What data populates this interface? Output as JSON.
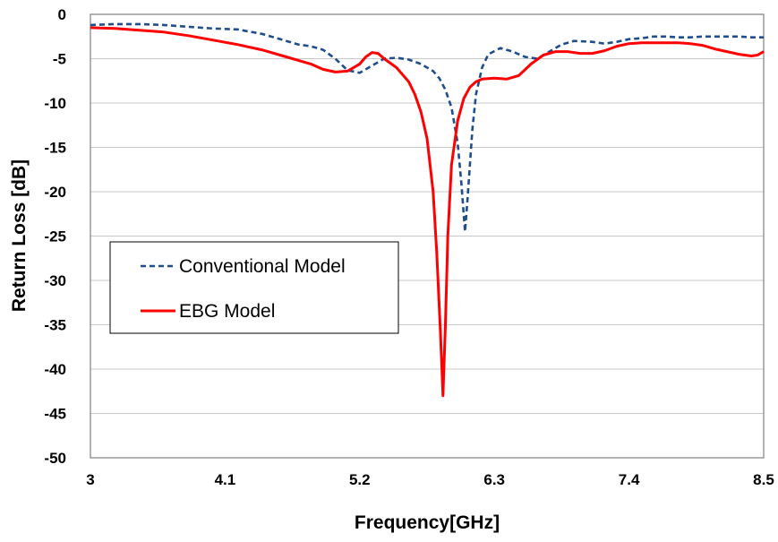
{
  "chart_data": {
    "type": "line",
    "title": "",
    "xlabel": "Frequency[GHz]",
    "ylabel": "Return Loss [dB]",
    "xlim": [
      3,
      8.5
    ],
    "ylim": [
      -50,
      0
    ],
    "x_ticks": [
      "3",
      "4.1",
      "5.2",
      "6.3",
      "7.4",
      "8.5"
    ],
    "y_ticks": [
      "0",
      "-5",
      "-10",
      "-15",
      "-20",
      "-25",
      "-30",
      "-35",
      "-40",
      "-45",
      "-50"
    ],
    "grid": "horizontal",
    "legend_position": "lower-left inside plot",
    "series": [
      {
        "name": "Conventional Model",
        "color": "#1f4e8c",
        "style": "dashed",
        "points": [
          [
            3.0,
            -1.2
          ],
          [
            3.2,
            -1.1
          ],
          [
            3.4,
            -1.1
          ],
          [
            3.6,
            -1.2
          ],
          [
            3.8,
            -1.4
          ],
          [
            4.0,
            -1.6
          ],
          [
            4.2,
            -1.7
          ],
          [
            4.4,
            -2.2
          ],
          [
            4.6,
            -3.0
          ],
          [
            4.7,
            -3.4
          ],
          [
            4.8,
            -3.6
          ],
          [
            4.9,
            -4.0
          ],
          [
            5.0,
            -5.0
          ],
          [
            5.1,
            -6.3
          ],
          [
            5.2,
            -6.6
          ],
          [
            5.3,
            -5.8
          ],
          [
            5.4,
            -5.0
          ],
          [
            5.5,
            -4.9
          ],
          [
            5.6,
            -5.1
          ],
          [
            5.7,
            -5.6
          ],
          [
            5.8,
            -6.4
          ],
          [
            5.85,
            -7.2
          ],
          [
            5.9,
            -8.5
          ],
          [
            5.95,
            -10.5
          ],
          [
            6.0,
            -14.5
          ],
          [
            6.03,
            -19.0
          ],
          [
            6.06,
            -24.5
          ],
          [
            6.08,
            -21.0
          ],
          [
            6.12,
            -13.0
          ],
          [
            6.15,
            -9.0
          ],
          [
            6.2,
            -6.0
          ],
          [
            6.25,
            -4.5
          ],
          [
            6.35,
            -3.8
          ],
          [
            6.45,
            -4.2
          ],
          [
            6.55,
            -4.8
          ],
          [
            6.65,
            -5.0
          ],
          [
            6.75,
            -4.2
          ],
          [
            6.85,
            -3.4
          ],
          [
            6.95,
            -3.0
          ],
          [
            7.1,
            -3.1
          ],
          [
            7.2,
            -3.3
          ],
          [
            7.3,
            -3.1
          ],
          [
            7.4,
            -2.8
          ],
          [
            7.5,
            -2.7
          ],
          [
            7.6,
            -2.5
          ],
          [
            7.7,
            -2.5
          ],
          [
            7.8,
            -2.6
          ],
          [
            7.9,
            -2.6
          ],
          [
            8.0,
            -2.5
          ],
          [
            8.1,
            -2.5
          ],
          [
            8.2,
            -2.5
          ],
          [
            8.3,
            -2.5
          ],
          [
            8.4,
            -2.6
          ],
          [
            8.5,
            -2.6
          ]
        ]
      },
      {
        "name": "EBG Model",
        "color": "#ff0000",
        "style": "solid",
        "points": [
          [
            3.0,
            -1.5
          ],
          [
            3.2,
            -1.6
          ],
          [
            3.4,
            -1.8
          ],
          [
            3.6,
            -2.0
          ],
          [
            3.8,
            -2.4
          ],
          [
            4.0,
            -2.9
          ],
          [
            4.2,
            -3.4
          ],
          [
            4.4,
            -4.0
          ],
          [
            4.6,
            -4.8
          ],
          [
            4.8,
            -5.6
          ],
          [
            4.9,
            -6.2
          ],
          [
            5.0,
            -6.5
          ],
          [
            5.1,
            -6.4
          ],
          [
            5.2,
            -5.6
          ],
          [
            5.25,
            -4.8
          ],
          [
            5.3,
            -4.3
          ],
          [
            5.35,
            -4.4
          ],
          [
            5.4,
            -5.0
          ],
          [
            5.5,
            -6.0
          ],
          [
            5.6,
            -7.6
          ],
          [
            5.65,
            -9.0
          ],
          [
            5.7,
            -11.0
          ],
          [
            5.75,
            -14.0
          ],
          [
            5.8,
            -20.0
          ],
          [
            5.83,
            -27.0
          ],
          [
            5.86,
            -36.0
          ],
          [
            5.88,
            -43.0
          ],
          [
            5.9,
            -35.0
          ],
          [
            5.92,
            -25.0
          ],
          [
            5.95,
            -17.0
          ],
          [
            6.0,
            -12.0
          ],
          [
            6.05,
            -9.5
          ],
          [
            6.1,
            -8.2
          ],
          [
            6.15,
            -7.6
          ],
          [
            6.2,
            -7.3
          ],
          [
            6.3,
            -7.2
          ],
          [
            6.4,
            -7.3
          ],
          [
            6.5,
            -6.9
          ],
          [
            6.6,
            -5.6
          ],
          [
            6.7,
            -4.6
          ],
          [
            6.8,
            -4.2
          ],
          [
            6.9,
            -4.2
          ],
          [
            7.0,
            -4.4
          ],
          [
            7.1,
            -4.4
          ],
          [
            7.2,
            -4.1
          ],
          [
            7.3,
            -3.6
          ],
          [
            7.4,
            -3.3
          ],
          [
            7.5,
            -3.2
          ],
          [
            7.6,
            -3.2
          ],
          [
            7.7,
            -3.2
          ],
          [
            7.8,
            -3.2
          ],
          [
            7.9,
            -3.3
          ],
          [
            8.0,
            -3.5
          ],
          [
            8.1,
            -3.9
          ],
          [
            8.2,
            -4.2
          ],
          [
            8.3,
            -4.5
          ],
          [
            8.4,
            -4.7
          ],
          [
            8.45,
            -4.6
          ],
          [
            8.5,
            -4.2
          ]
        ]
      }
    ]
  }
}
